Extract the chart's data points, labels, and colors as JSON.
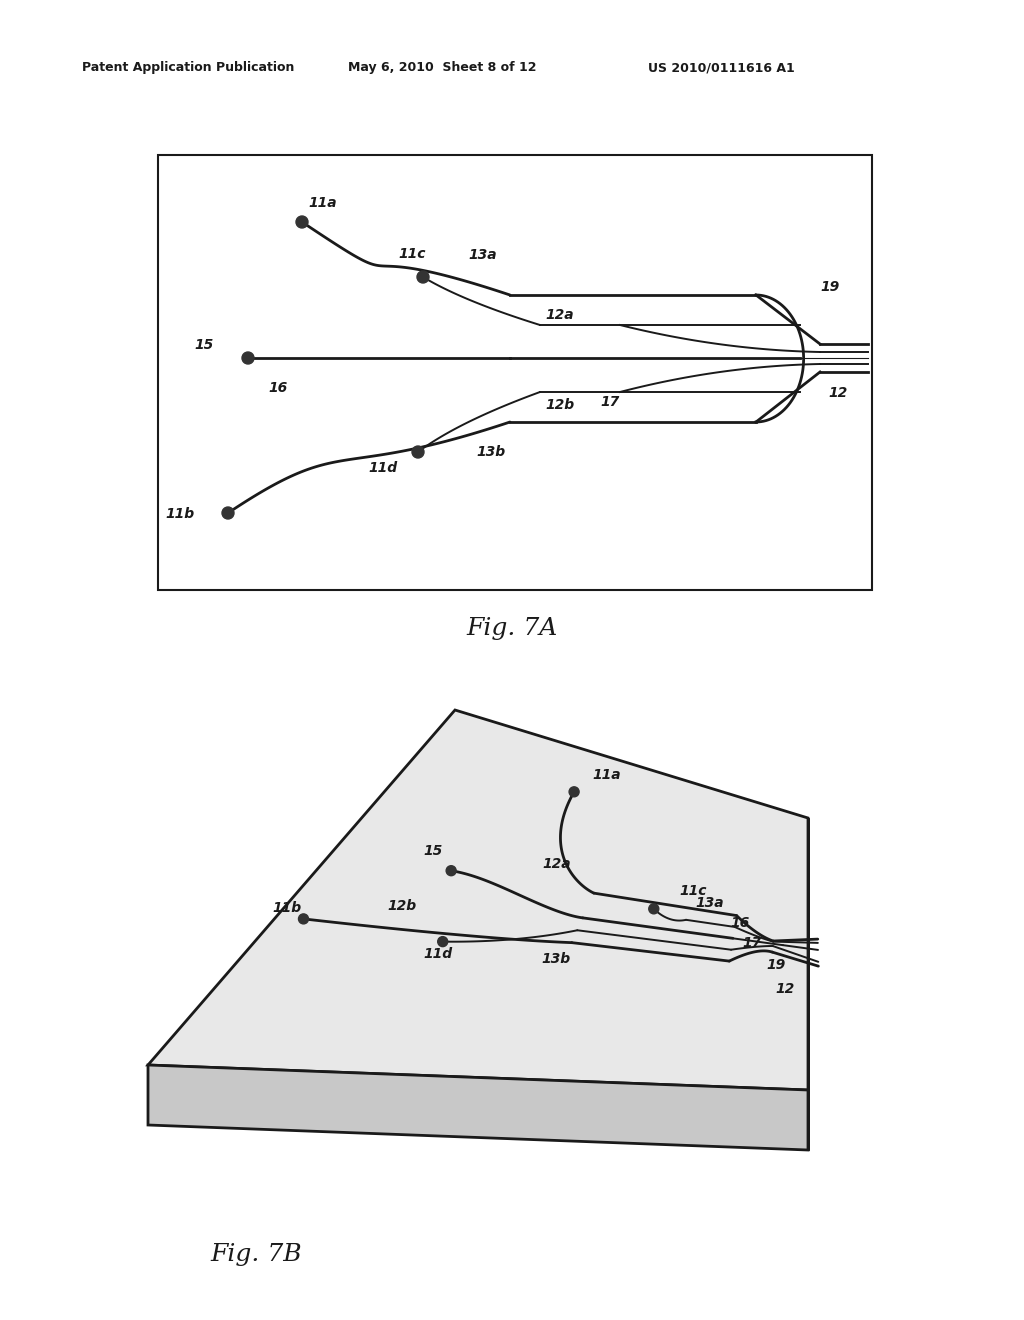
{
  "bg_color": "#ffffff",
  "line_color": "#1a1a1a",
  "header_text": "Patent Application Publication",
  "header_date": "May 6, 2010  Sheet 8 of 12",
  "header_patent": "US 2010/0111616 A1",
  "fig7A_caption": "Fig. 7A",
  "fig7B_caption": "Fig. 7B",
  "label_fontsize": 10,
  "caption_fontsize": 18
}
